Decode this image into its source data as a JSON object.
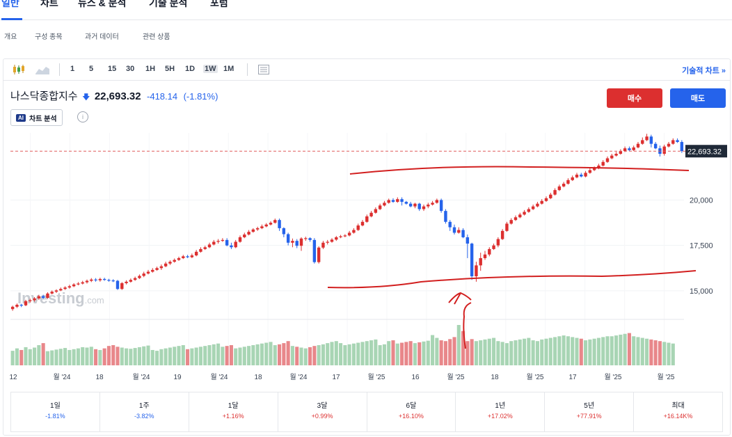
{
  "top_tabs": [
    "일반",
    "차트",
    "뉴스 & 분석",
    "기술 분석",
    "포럼"
  ],
  "sub_tabs": [
    "개요",
    "구성 종목",
    "과거 데이터",
    "관련 상품"
  ],
  "toolbar": {
    "icons": [
      "candlestick-icon",
      "area-chart-icon",
      "layout-icon"
    ],
    "intervals": [
      "1",
      "5",
      "15",
      "30",
      "1H",
      "5H",
      "1D",
      "1W",
      "1M"
    ],
    "selected_interval": "1W",
    "technical_link": "기술적 차트 »"
  },
  "quote": {
    "name": "나스닥종합지수",
    "arrow": "🡇",
    "price": "22,693.32",
    "change": "-418.14",
    "change_pct": "(-1.81%)"
  },
  "ai_button": {
    "badge": "AI",
    "label": "차트 분석",
    "info": "i"
  },
  "actions": {
    "buy": "매수",
    "sell": "매도"
  },
  "colors": {
    "up": "#2563eb",
    "down": "#dc2f2f",
    "up_volume": "#a8d5b4",
    "down_volume": "#e8878a",
    "current_line": "#e05a5a",
    "annotation": "#d21f1f"
  },
  "watermark": {
    "text": "Investing",
    "suffix": ".com"
  },
  "chart_data": {
    "type": "candlestick",
    "y_ticks": [
      "20,000",
      "17,500",
      "15,000"
    ],
    "current_price_label": "22,693.32",
    "ylim": [
      13500,
      23700
    ],
    "x_labels": [
      "12",
      "월 '24",
      "18",
      "월 '24",
      "19",
      "월 '24",
      "18",
      "월 '24",
      "17",
      "월 '25",
      "16",
      "월 '25",
      "18",
      "월 '25",
      "17",
      "월 '25",
      "월 '25"
    ],
    "candles": [
      [
        13990,
        14120,
        13900,
        14180
      ],
      [
        14120,
        14230,
        14050,
        14300
      ],
      [
        14230,
        14200,
        14100,
        14280
      ],
      [
        14200,
        14430,
        14150,
        14500
      ],
      [
        14430,
        14480,
        14350,
        14560
      ],
      [
        14480,
        14580,
        14400,
        14650
      ],
      [
        14580,
        14700,
        14500,
        14780
      ],
      [
        14700,
        14610,
        14550,
        14780
      ],
      [
        14610,
        14850,
        14560,
        14920
      ],
      [
        14850,
        14950,
        14800,
        15020
      ],
      [
        14950,
        15020,
        14880,
        15080
      ],
      [
        15020,
        15100,
        14980,
        15180
      ],
      [
        15100,
        15180,
        15050,
        15250
      ],
      [
        15180,
        15250,
        15120,
        15330
      ],
      [
        15250,
        15350,
        15200,
        15420
      ],
      [
        15350,
        15400,
        15300,
        15480
      ],
      [
        15400,
        15470,
        15350,
        15550
      ],
      [
        15470,
        15550,
        15400,
        15620
      ],
      [
        15550,
        15620,
        15480,
        15700
      ],
      [
        15620,
        15580,
        15500,
        15700
      ],
      [
        15580,
        15650,
        15500,
        15720
      ],
      [
        15650,
        15600,
        15550,
        15720
      ],
      [
        15600,
        15570,
        15500,
        15660
      ],
      [
        15570,
        15550,
        15480,
        15640
      ],
      [
        15550,
        15100,
        15050,
        15600
      ],
      [
        15100,
        15420,
        15050,
        15480
      ],
      [
        15420,
        15500,
        15350,
        15580
      ],
      [
        15500,
        15600,
        15450,
        15680
      ],
      [
        15600,
        15700,
        15550,
        15780
      ],
      [
        15700,
        15820,
        15650,
        15900
      ],
      [
        15820,
        15950,
        15750,
        16050
      ],
      [
        15950,
        16050,
        15900,
        16150
      ],
      [
        16050,
        16150,
        16000,
        16250
      ],
      [
        16150,
        16250,
        16100,
        16330
      ],
      [
        16250,
        16350,
        16150,
        16450
      ],
      [
        16350,
        16500,
        16300,
        16600
      ],
      [
        16500,
        16600,
        16420,
        16680
      ],
      [
        16600,
        16700,
        16550,
        16780
      ],
      [
        16700,
        16800,
        16650,
        16880
      ],
      [
        16800,
        16900,
        16750,
        16980
      ],
      [
        16900,
        16850,
        16800,
        16980
      ],
      [
        16850,
        16950,
        16800,
        17050
      ],
      [
        16950,
        17150,
        16900,
        17250
      ],
      [
        17150,
        17300,
        17100,
        17400
      ],
      [
        17300,
        17400,
        17250,
        17480
      ],
      [
        17400,
        17550,
        17350,
        17650
      ],
      [
        17550,
        17700,
        17500,
        17800
      ],
      [
        17700,
        17750,
        17600,
        17850
      ],
      [
        17750,
        17800,
        17700,
        17900
      ],
      [
        17800,
        17500,
        17450,
        17900
      ],
      [
        17500,
        17400,
        17300,
        17650
      ],
      [
        17400,
        17700,
        17350,
        17800
      ],
      [
        17700,
        17950,
        17650,
        18050
      ],
      [
        17950,
        18100,
        17900,
        18200
      ],
      [
        18100,
        18250,
        18050,
        18350
      ],
      [
        18250,
        18380,
        18200,
        18450
      ],
      [
        18380,
        18450,
        18300,
        18530
      ],
      [
        18450,
        18550,
        18400,
        18650
      ],
      [
        18550,
        18650,
        18500,
        18730
      ],
      [
        18650,
        18750,
        18600,
        18830
      ],
      [
        18750,
        18900,
        18700,
        18980
      ],
      [
        18900,
        18450,
        18300,
        18980
      ],
      [
        18450,
        18120,
        17950,
        18500
      ],
      [
        18120,
        17650,
        17500,
        18200
      ],
      [
        17650,
        17750,
        17400,
        17880
      ],
      [
        17750,
        17480,
        17350,
        17850
      ],
      [
        17480,
        17880,
        17200,
        17950
      ],
      [
        17880,
        17900,
        17750,
        17980
      ],
      [
        17900,
        17800,
        17700,
        17950
      ],
      [
        17800,
        16580,
        16500,
        17900
      ],
      [
        16580,
        17380,
        16500,
        17450
      ],
      [
        17380,
        17650,
        17300,
        17750
      ],
      [
        17650,
        17700,
        17550,
        17800
      ],
      [
        17700,
        17820,
        17650,
        17900
      ],
      [
        17820,
        17950,
        17750,
        18020
      ],
      [
        17950,
        18000,
        17900,
        18080
      ],
      [
        18000,
        18050,
        17950,
        18120
      ],
      [
        18050,
        18200,
        18000,
        18300
      ],
      [
        18200,
        18350,
        18150,
        18450
      ],
      [
        18350,
        18600,
        18300,
        18700
      ],
      [
        18600,
        18800,
        18550,
        18900
      ],
      [
        18800,
        19100,
        18750,
        19200
      ],
      [
        19100,
        19300,
        19050,
        19400
      ],
      [
        19300,
        19500,
        19250,
        19600
      ],
      [
        19500,
        19700,
        19450,
        19800
      ],
      [
        19700,
        19850,
        19650,
        19950
      ],
      [
        19850,
        20000,
        19800,
        20080
      ],
      [
        20000,
        19900,
        19850,
        20100
      ],
      [
        19900,
        20050,
        19850,
        20150
      ],
      [
        20050,
        19900,
        19700,
        20150
      ],
      [
        19900,
        19800,
        19750,
        19950
      ],
      [
        19800,
        19650,
        19600,
        19900
      ],
      [
        19650,
        19800,
        19550,
        19850
      ],
      [
        19800,
        19500,
        19400,
        19850
      ],
      [
        19500,
        19650,
        19400,
        19750
      ],
      [
        19650,
        19750,
        19550,
        19850
      ],
      [
        19750,
        19850,
        19700,
        19950
      ],
      [
        19850,
        20000,
        19800,
        20080
      ],
      [
        20000,
        19400,
        19300,
        20080
      ],
      [
        19400,
        18800,
        18700,
        19500
      ],
      [
        18800,
        18500,
        18300,
        18900
      ],
      [
        18500,
        18200,
        18100,
        18650
      ],
      [
        18200,
        18350,
        18150,
        18500
      ],
      [
        18350,
        17950,
        17900,
        18450
      ],
      [
        17950,
        17600,
        16800,
        18100
      ],
      [
        17600,
        15800,
        15600,
        17650
      ],
      [
        15800,
        16400,
        15500,
        16600
      ],
      [
        16400,
        16800,
        16100,
        17100
      ],
      [
        16800,
        17000,
        16700,
        17200
      ],
      [
        17000,
        17300,
        16900,
        17400
      ],
      [
        17300,
        17500,
        17250,
        17600
      ],
      [
        17500,
        17850,
        17400,
        17950
      ],
      [
        17850,
        18300,
        17800,
        18400
      ],
      [
        18300,
        18700,
        18250,
        18800
      ],
      [
        18700,
        18900,
        18650,
        19000
      ],
      [
        18900,
        19050,
        18850,
        19150
      ],
      [
        19050,
        19200,
        19000,
        19300
      ],
      [
        19200,
        19350,
        19150,
        19450
      ],
      [
        19350,
        19500,
        19300,
        19600
      ],
      [
        19500,
        19650,
        19450,
        19750
      ],
      [
        19650,
        19800,
        19600,
        19900
      ],
      [
        19800,
        19950,
        19750,
        20050
      ],
      [
        19950,
        20100,
        19900,
        20200
      ],
      [
        20100,
        20300,
        20050,
        20400
      ],
      [
        20300,
        20550,
        20250,
        20650
      ],
      [
        20550,
        20750,
        20500,
        20850
      ],
      [
        20750,
        20900,
        20700,
        21000
      ],
      [
        20900,
        21100,
        20850,
        21200
      ],
      [
        21100,
        21250,
        21050,
        21350
      ],
      [
        21250,
        21400,
        21200,
        21500
      ],
      [
        21400,
        21300,
        21250,
        21500
      ],
      [
        21300,
        21500,
        21250,
        21600
      ],
      [
        21500,
        21650,
        21450,
        21750
      ],
      [
        21650,
        21750,
        21600,
        21850
      ],
      [
        21750,
        21900,
        21700,
        22000
      ],
      [
        21900,
        22100,
        21850,
        22200
      ],
      [
        22100,
        22300,
        22050,
        22400
      ],
      [
        22300,
        22450,
        22250,
        22550
      ],
      [
        22450,
        22550,
        22400,
        22650
      ],
      [
        22550,
        22700,
        22500,
        22800
      ],
      [
        22700,
        22850,
        22650,
        22950
      ],
      [
        22850,
        22750,
        22700,
        22950
      ],
      [
        22750,
        22900,
        22700,
        23000
      ],
      [
        22900,
        23100,
        22850,
        23200
      ],
      [
        23100,
        23300,
        23050,
        23450
      ],
      [
        23300,
        23500,
        23250,
        23650
      ],
      [
        23500,
        23100,
        22900,
        23600
      ],
      [
        23100,
        22850,
        22800,
        23200
      ],
      [
        22850,
        22550,
        22400,
        23000
      ],
      [
        22550,
        22950,
        22450,
        23050
      ],
      [
        22950,
        23100,
        22900,
        23200
      ],
      [
        23100,
        23300,
        23050,
        23400
      ],
      [
        23300,
        23200,
        23150,
        23400
      ],
      [
        23200,
        22700,
        22600,
        23300
      ]
    ],
    "volumes": [
      0.36,
      0.42,
      0.38,
      0.45,
      0.4,
      0.44,
      0.5,
      0.55,
      0.35,
      0.37,
      0.39,
      0.41,
      0.43,
      0.38,
      0.4,
      0.42,
      0.45,
      0.44,
      0.46,
      0.4,
      0.38,
      0.42,
      0.48,
      0.5,
      0.46,
      0.44,
      0.42,
      0.41,
      0.43,
      0.45,
      0.47,
      0.49,
      0.38,
      0.36,
      0.4,
      0.42,
      0.44,
      0.46,
      0.48,
      0.5,
      0.4,
      0.42,
      0.44,
      0.46,
      0.48,
      0.5,
      0.52,
      0.54,
      0.46,
      0.48,
      0.5,
      0.42,
      0.44,
      0.46,
      0.48,
      0.5,
      0.52,
      0.54,
      0.56,
      0.58,
      0.5,
      0.52,
      0.55,
      0.6,
      0.48,
      0.46,
      0.44,
      0.42,
      0.45,
      0.48,
      0.5,
      0.52,
      0.55,
      0.58,
      0.6,
      0.55,
      0.5,
      0.52,
      0.54,
      0.56,
      0.58,
      0.6,
      0.62,
      0.64,
      0.5,
      0.52,
      0.6,
      0.62,
      0.54,
      0.56,
      0.58,
      0.6,
      0.55,
      0.57,
      0.59,
      0.61,
      0.75,
      0.68,
      0.62,
      0.6,
      0.65,
      0.7,
      1.0,
      0.85,
      0.6,
      0.65,
      0.6,
      0.62,
      0.64,
      0.66,
      0.68,
      0.6,
      0.58,
      0.55,
      0.6,
      0.62,
      0.64,
      0.66,
      0.68,
      0.62,
      0.6,
      0.64,
      0.66,
      0.68,
      0.7,
      0.72,
      0.74,
      0.72,
      0.7,
      0.68,
      0.66,
      0.62,
      0.64,
      0.66,
      0.68,
      0.7,
      0.72,
      0.72,
      0.74,
      0.76,
      0.78,
      0.8,
      0.72,
      0.7,
      0.68,
      0.66,
      0.64,
      0.62,
      0.6,
      0.58,
      0.56,
      0.54
    ]
  },
  "periods": [
    {
      "label": "1일",
      "value": "-1.81%",
      "dir": "down"
    },
    {
      "label": "1주",
      "value": "-3.82%",
      "dir": "down"
    },
    {
      "label": "1달",
      "value": "+1.16%",
      "dir": "up"
    },
    {
      "label": "3달",
      "value": "+0.99%",
      "dir": "up"
    },
    {
      "label": "6달",
      "value": "+16.10%",
      "dir": "up"
    },
    {
      "label": "1년",
      "value": "+17.02%",
      "dir": "up"
    },
    {
      "label": "5년",
      "value": "+77.91%",
      "dir": "up"
    },
    {
      "label": "최대",
      "value": "+16.14K%",
      "dir": "up"
    }
  ]
}
